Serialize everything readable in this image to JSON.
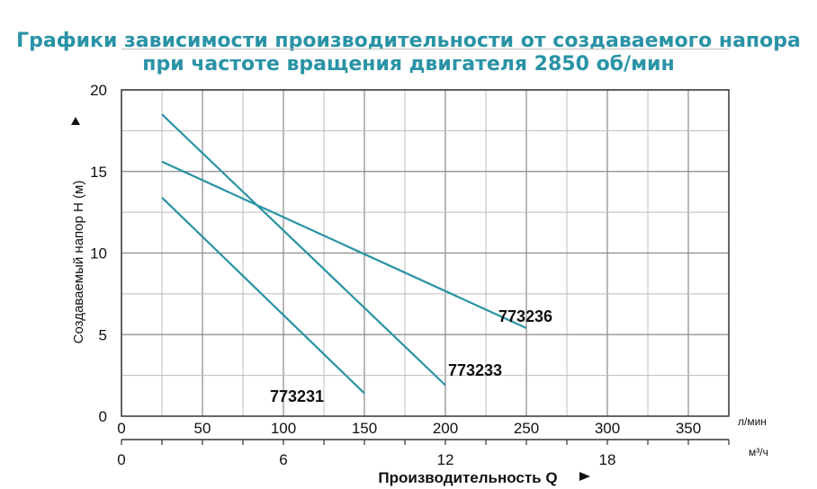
{
  "title_line1": "Графики зависимости производительности от создаваемого напора",
  "title_line2": "при частоте вращения двигателя 2850 об/мин",
  "chart_data": {
    "type": "line",
    "ylabel": "Создаваемый напор H (м)",
    "xlabel": "Производительность Q",
    "xlim": [
      0,
      375
    ],
    "ylim": [
      0,
      20
    ],
    "x_unit_primary": "л/мин",
    "x_unit_secondary": "м³/ч",
    "x_ticks_primary": [
      0,
      50,
      100,
      150,
      200,
      250,
      300,
      350
    ],
    "x_ticks_secondary": [
      0,
      6,
      12,
      18
    ],
    "y_ticks": [
      0,
      5,
      10,
      15,
      20
    ],
    "grid": true,
    "series": [
      {
        "name": "773231",
        "x": [
          25,
          150
        ],
        "y": [
          13.4,
          1.4
        ],
        "color": "#2a93a6"
      },
      {
        "name": "773233",
        "x": [
          25,
          200
        ],
        "y": [
          18.5,
          1.9
        ],
        "color": "#2a93a6"
      },
      {
        "name": "773236",
        "x": [
          25,
          250
        ],
        "y": [
          15.6,
          5.4
        ],
        "color": "#2a93a6"
      }
    ]
  }
}
